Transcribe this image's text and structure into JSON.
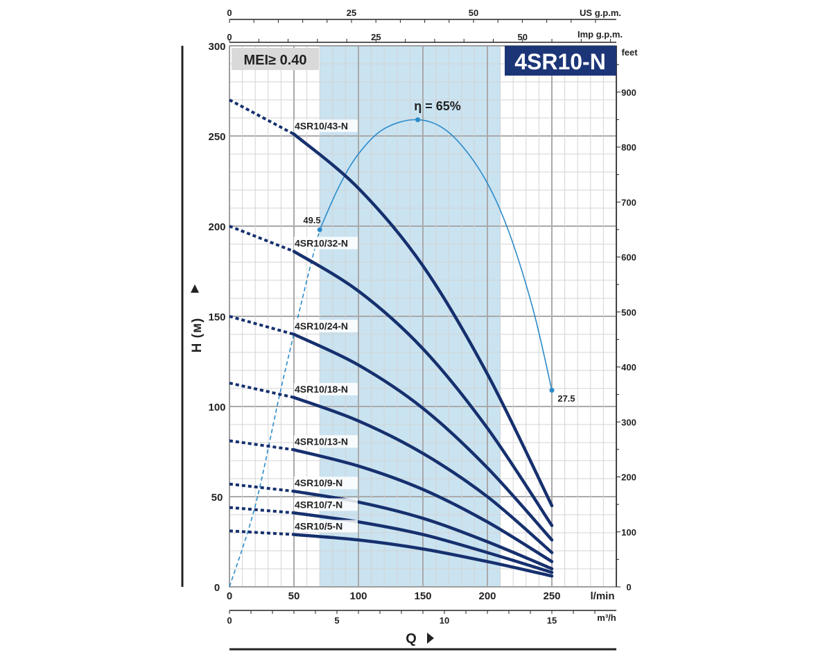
{
  "chart_data": {
    "type": "line",
    "title": "4SR10-N",
    "badge": "MEI≥ 0.40",
    "xlabel": "Q",
    "x_unit": "l/min",
    "ylabel": "H (м)",
    "xlim": [
      0,
      300
    ],
    "ylim": [
      0,
      300
    ],
    "x_ticks": [
      0,
      50,
      100,
      150,
      200,
      250
    ],
    "y_ticks": [
      0,
      50,
      100,
      150,
      200,
      250,
      300
    ],
    "grid": true,
    "recommended_range_lmin": [
      70,
      210
    ],
    "secondary_axes": {
      "us_gpm": {
        "label": "US g.p.m.",
        "ticks": [
          0,
          25,
          50
        ]
      },
      "imp_gpm": {
        "label": "Imp g.p.m.",
        "ticks": [
          0,
          25,
          50
        ]
      },
      "m3h": {
        "label": "m³/h",
        "ticks": [
          0,
          5,
          10,
          15
        ]
      },
      "feet": {
        "label": "feet",
        "ticks": [
          0,
          100,
          200,
          300,
          400,
          500,
          600,
          700,
          800,
          900
        ]
      }
    },
    "series": [
      {
        "name": "4SR10/43-N",
        "x": [
          0,
          50,
          100,
          150,
          200,
          250
        ],
        "y": [
          270,
          251,
          221,
          178,
          118,
          45
        ]
      },
      {
        "name": "4SR10/32-N",
        "x": [
          0,
          50,
          100,
          150,
          200,
          250
        ],
        "y": [
          200,
          186,
          164,
          132,
          88,
          34
        ]
      },
      {
        "name": "4SR10/24-N",
        "x": [
          0,
          50,
          100,
          150,
          200,
          250
        ],
        "y": [
          150,
          140,
          123,
          99,
          66,
          26
        ]
      },
      {
        "name": "4SR10/18-N",
        "x": [
          0,
          50,
          100,
          150,
          200,
          250
        ],
        "y": [
          113,
          105,
          92,
          74,
          50,
          19
        ]
      },
      {
        "name": "4SR10/13-N",
        "x": [
          0,
          50,
          100,
          150,
          200,
          250
        ],
        "y": [
          81,
          76,
          67,
          54,
          36,
          14
        ]
      },
      {
        "name": "4SR10/9-N",
        "x": [
          0,
          50,
          100,
          150,
          200,
          250
        ],
        "y": [
          57,
          53,
          47,
          38,
          25,
          10
        ]
      },
      {
        "name": "4SR10/7-N",
        "x": [
          0,
          50,
          100,
          150,
          200,
          250
        ],
        "y": [
          44,
          41,
          36,
          29,
          19,
          8
        ]
      },
      {
        "name": "4SR10/5-N",
        "x": [
          0,
          50,
          100,
          150,
          200,
          250
        ],
        "y": [
          31,
          29,
          26,
          21,
          14,
          6
        ]
      }
    ],
    "efficiency_curve": {
      "x": [
        0,
        20,
        40,
        60,
        70,
        85,
        100,
        120,
        146,
        170,
        195,
        215,
        235,
        250
      ],
      "y": [
        0,
        45,
        110,
        170,
        198,
        222,
        240,
        254,
        259,
        252,
        230,
        200,
        155,
        109
      ],
      "labels": {
        "start": "49.5",
        "peak": "η = 65%",
        "end": "27.5"
      }
    }
  }
}
